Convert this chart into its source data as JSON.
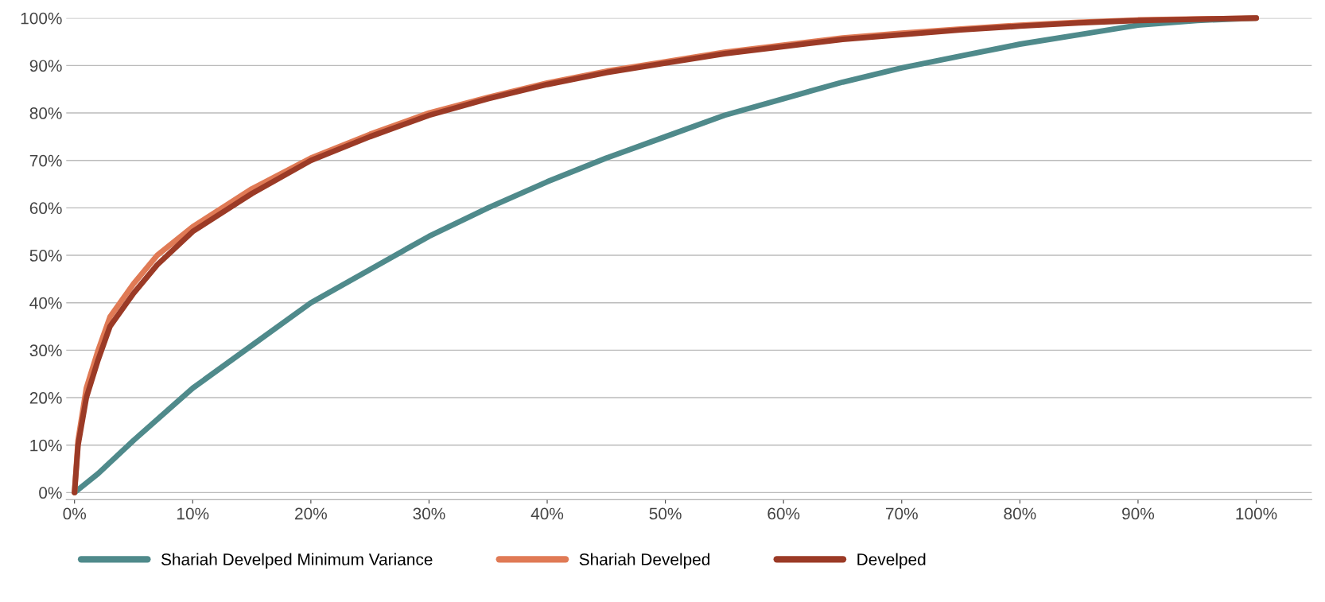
{
  "chart_data": {
    "type": "line",
    "xlim": [
      -0.7,
      104.7
    ],
    "ylim": [
      -1.5,
      100
    ],
    "xticks": [
      {
        "value": 0,
        "label": "0%"
      },
      {
        "value": 10,
        "label": "10%"
      },
      {
        "value": 20,
        "label": "20%"
      },
      {
        "value": 30,
        "label": "30%"
      },
      {
        "value": 40,
        "label": "40%"
      },
      {
        "value": 50,
        "label": "50%"
      },
      {
        "value": 60,
        "label": "60%"
      },
      {
        "value": 70,
        "label": "70%"
      },
      {
        "value": 80,
        "label": "80%"
      },
      {
        "value": 90,
        "label": "90%"
      },
      {
        "value": 100,
        "label": "100%"
      }
    ],
    "yticks": [
      {
        "value": 0,
        "label": "0%"
      },
      {
        "value": 10,
        "label": "10%"
      },
      {
        "value": 20,
        "label": "20%"
      },
      {
        "value": 30,
        "label": "30%"
      },
      {
        "value": 40,
        "label": "40%"
      },
      {
        "value": 50,
        "label": "50%"
      },
      {
        "value": 60,
        "label": "60%"
      },
      {
        "value": 70,
        "label": "70%"
      },
      {
        "value": 80,
        "label": "80%"
      },
      {
        "value": 90,
        "label": "90%"
      },
      {
        "value": 100,
        "label": "100%"
      }
    ],
    "grid": "y",
    "legend": "bottom",
    "marker": "none",
    "line_style": "solid",
    "series": [
      {
        "name": "Shariah Develped Minimum Variance",
        "color": "#4f8a8b",
        "x": [
          0,
          2,
          5,
          10,
          15,
          20,
          25,
          30,
          35,
          40,
          45,
          50,
          55,
          60,
          65,
          70,
          75,
          80,
          85,
          90,
          95,
          100
        ],
        "values": [
          0,
          4,
          11,
          22,
          31,
          40,
          47,
          54,
          60,
          65.5,
          70.5,
          75,
          79.5,
          83,
          86.5,
          89.5,
          92,
          94.5,
          96.5,
          98.5,
          99.5,
          100
        ]
      },
      {
        "name": "Shariah Develped",
        "color": "#e07a55",
        "x": [
          0,
          0.3,
          1,
          2,
          3,
          5,
          7,
          10,
          15,
          20,
          25,
          30,
          35,
          40,
          45,
          50,
          55,
          60,
          65,
          70,
          75,
          80,
          85,
          90,
          100
        ],
        "values": [
          0,
          11,
          22,
          30,
          37,
          44,
          50,
          56,
          64,
          70.5,
          75.5,
          80,
          83.3,
          86.3,
          88.8,
          90.8,
          92.8,
          94.3,
          95.8,
          96.8,
          97.7,
          98.5,
          99.1,
          99.6,
          100
        ]
      },
      {
        "name": "Develped",
        "color": "#9b3a26",
        "x": [
          0,
          0.3,
          1,
          2,
          3,
          5,
          7,
          10,
          15,
          20,
          25,
          30,
          35,
          40,
          45,
          50,
          55,
          60,
          65,
          70,
          75,
          80,
          85,
          90,
          100
        ],
        "values": [
          0,
          10,
          20,
          28,
          35,
          42,
          48,
          55,
          63,
          70,
          75,
          79.5,
          83,
          86,
          88.5,
          90.5,
          92.5,
          94,
          95.5,
          96.5,
          97.5,
          98.3,
          99,
          99.5,
          100
        ]
      }
    ]
  }
}
